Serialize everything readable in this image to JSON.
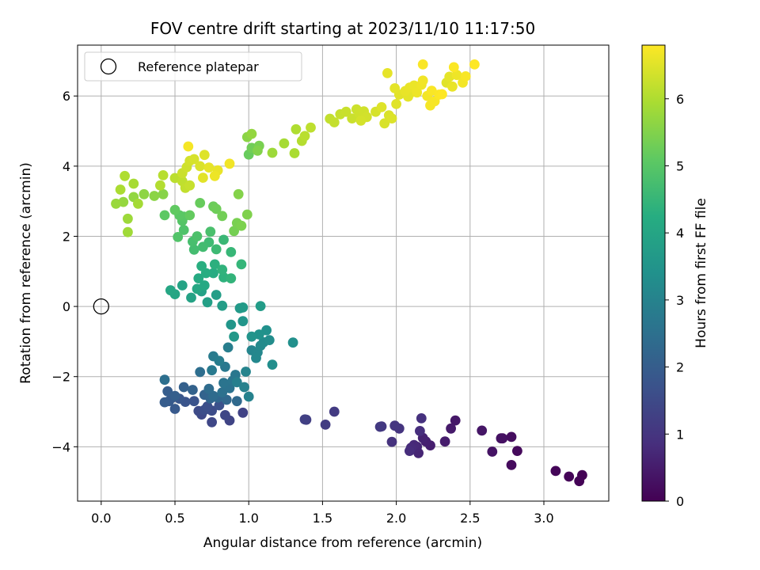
{
  "chart_data": {
    "type": "scatter",
    "title": "FOV centre drift starting at 2023/11/10 11:17:50",
    "xlabel": "Angular distance from reference (arcmin)",
    "ylabel": "Rotation from reference (arcmin)",
    "xlim": [
      -0.16,
      3.44
    ],
    "ylim": [
      -5.55,
      7.45
    ],
    "x_ticks": [
      0.0,
      0.5,
      1.0,
      1.5,
      2.0,
      2.5,
      3.0
    ],
    "x_tick_labels": [
      "0.0",
      "0.5",
      "1.0",
      "1.5",
      "2.0",
      "2.5",
      "3.0"
    ],
    "y_ticks": [
      -4,
      -2,
      0,
      2,
      4,
      6
    ],
    "y_tick_labels": [
      "−4",
      "−2",
      "0",
      "2",
      "4",
      "6"
    ],
    "grid": true,
    "legend_position": "top-left",
    "legend": [
      {
        "label": "Reference platepar",
        "marker": "open-circle",
        "x": 0,
        "y": 0
      }
    ],
    "colorbar": {
      "label": "Hours from first FF file",
      "min": 0,
      "max": 6.8,
      "ticks": [
        0,
        1,
        2,
        3,
        4,
        5,
        6
      ],
      "tick_labels": [
        "0",
        "1",
        "2",
        "3",
        "4",
        "5",
        "6"
      ],
      "colormap": "viridis"
    },
    "points": [
      [
        3.26,
        -4.81,
        0.02
      ],
      [
        3.24,
        -4.98,
        0.04
      ],
      [
        3.17,
        -4.85,
        0.06
      ],
      [
        3.08,
        -4.69,
        0.08
      ],
      [
        2.82,
        -4.12,
        0.15
      ],
      [
        2.78,
        -4.52,
        0.18
      ],
      [
        2.78,
        -3.72,
        0.22
      ],
      [
        2.72,
        -3.76,
        0.26
      ],
      [
        2.71,
        -3.76,
        0.3
      ],
      [
        2.65,
        -4.14,
        0.34
      ],
      [
        2.58,
        -3.54,
        0.38
      ],
      [
        2.4,
        -3.25,
        0.42
      ],
      [
        2.37,
        -3.48,
        0.46
      ],
      [
        2.33,
        -3.85,
        0.5
      ],
      [
        2.23,
        -3.96,
        0.54
      ],
      [
        2.2,
        -3.85,
        0.58
      ],
      [
        2.18,
        -3.75,
        0.62
      ],
      [
        2.15,
        -4.18,
        0.66
      ],
      [
        2.14,
        -4.0,
        0.7
      ],
      [
        2.12,
        -3.95,
        0.74
      ],
      [
        2.1,
        -4.03,
        0.78
      ],
      [
        2.09,
        -4.12,
        0.82
      ],
      [
        2.16,
        -3.55,
        0.86
      ],
      [
        2.17,
        -3.19,
        0.9
      ],
      [
        1.97,
        -3.86,
        0.94
      ],
      [
        2.02,
        -3.48,
        0.98
      ],
      [
        1.99,
        -3.4,
        1.02
      ],
      [
        1.9,
        -3.42,
        1.06
      ],
      [
        1.89,
        -3.43,
        1.1
      ],
      [
        1.58,
        -3.0,
        1.14
      ],
      [
        1.52,
        -3.37,
        1.18
      ],
      [
        1.39,
        -3.23,
        1.22
      ],
      [
        1.38,
        -3.22,
        1.26
      ],
      [
        0.96,
        -3.03,
        1.32
      ],
      [
        0.87,
        -3.25,
        1.36
      ],
      [
        0.84,
        -3.1,
        1.4
      ],
      [
        0.75,
        -3.3,
        1.44
      ],
      [
        0.68,
        -3.08,
        1.48
      ],
      [
        0.66,
        -2.98,
        1.52
      ],
      [
        0.75,
        -2.97,
        1.56
      ],
      [
        0.7,
        -2.95,
        1.6
      ],
      [
        0.72,
        -2.85,
        1.64
      ],
      [
        0.8,
        -2.82,
        1.68
      ],
      [
        0.63,
        -2.7,
        1.72
      ],
      [
        0.57,
        -2.72,
        1.76
      ],
      [
        0.53,
        -2.63,
        1.8
      ],
      [
        0.48,
        -2.6,
        1.84
      ],
      [
        0.5,
        -2.92,
        1.88
      ],
      [
        0.46,
        -2.7,
        1.92
      ],
      [
        0.43,
        -2.73,
        1.96
      ],
      [
        0.45,
        -2.42,
        2.0
      ],
      [
        0.5,
        -2.55,
        2.04
      ],
      [
        0.56,
        -2.3,
        2.08
      ],
      [
        0.62,
        -2.38,
        2.12
      ],
      [
        0.7,
        -2.52,
        2.16
      ],
      [
        0.74,
        -2.62,
        2.2
      ],
      [
        0.79,
        -2.6,
        2.24
      ],
      [
        0.85,
        -2.66,
        2.28
      ],
      [
        0.92,
        -2.7,
        2.32
      ],
      [
        0.76,
        -2.55,
        2.36
      ],
      [
        0.73,
        -2.35,
        2.4
      ],
      [
        0.67,
        -1.87,
        2.44
      ],
      [
        0.43,
        -2.09,
        2.48
      ],
      [
        0.82,
        -2.45,
        2.52
      ],
      [
        0.87,
        -2.33,
        2.56
      ],
      [
        0.83,
        -2.18,
        2.6
      ],
      [
        0.89,
        -2.12,
        2.64
      ],
      [
        0.91,
        -1.95,
        2.68
      ],
      [
        0.84,
        -1.72,
        2.72
      ],
      [
        0.75,
        -1.82,
        2.76
      ],
      [
        0.76,
        -1.42,
        2.8
      ],
      [
        0.8,
        -1.55,
        2.84
      ],
      [
        0.86,
        -1.17,
        2.88
      ],
      [
        0.92,
        -2.16,
        2.92
      ],
      [
        0.97,
        -2.3,
        2.96
      ],
      [
        1.0,
        -2.57,
        3.0
      ],
      [
        0.98,
        -1.86,
        3.04
      ],
      [
        1.02,
        -1.25,
        3.08
      ],
      [
        1.06,
        -1.31,
        3.12
      ],
      [
        1.05,
        -1.47,
        3.16
      ],
      [
        1.08,
        -1.12,
        3.2
      ],
      [
        1.1,
        -1.02,
        3.24
      ],
      [
        1.14,
        -0.96,
        3.28
      ],
      [
        1.16,
        -1.66,
        3.32
      ],
      [
        1.3,
        -1.03,
        3.36
      ],
      [
        1.12,
        -0.68,
        3.4
      ],
      [
        1.07,
        -0.8,
        3.44
      ],
      [
        1.02,
        -0.86,
        3.48
      ],
      [
        0.96,
        -0.42,
        3.52
      ],
      [
        0.88,
        -0.52,
        3.56
      ],
      [
        0.9,
        -0.86,
        3.6
      ],
      [
        0.94,
        -0.05,
        3.64
      ],
      [
        0.96,
        -0.03,
        3.68
      ],
      [
        1.08,
        0.01,
        3.72
      ],
      [
        0.82,
        0.02,
        3.76
      ],
      [
        0.78,
        0.33,
        3.8
      ],
      [
        0.72,
        0.12,
        3.84
      ],
      [
        0.68,
        0.43,
        3.88
      ],
      [
        0.61,
        0.25,
        3.92
      ],
      [
        0.55,
        0.6,
        3.96
      ],
      [
        0.5,
        0.35,
        4.0
      ],
      [
        0.47,
        0.46,
        4.04
      ],
      [
        0.65,
        0.5,
        4.08
      ],
      [
        0.7,
        0.6,
        4.12
      ],
      [
        0.66,
        0.8,
        4.16
      ],
      [
        0.76,
        0.95,
        4.2
      ],
      [
        0.71,
        0.95,
        4.24
      ],
      [
        0.68,
        1.15,
        4.28
      ],
      [
        0.77,
        1.2,
        4.32
      ],
      [
        0.83,
        0.83,
        4.36
      ],
      [
        0.82,
        1.05,
        4.4
      ],
      [
        0.88,
        0.8,
        4.44
      ],
      [
        0.95,
        1.2,
        4.48
      ],
      [
        0.88,
        1.55,
        4.52
      ],
      [
        0.83,
        1.9,
        4.56
      ],
      [
        0.78,
        1.63,
        4.6
      ],
      [
        0.73,
        1.83,
        4.64
      ],
      [
        0.69,
        1.7,
        4.68
      ],
      [
        0.63,
        1.62,
        4.72
      ],
      [
        0.62,
        1.85,
        4.76
      ],
      [
        0.74,
        2.13,
        4.8
      ],
      [
        0.65,
        2.0,
        4.84
      ],
      [
        0.56,
        2.18,
        4.88
      ],
      [
        0.52,
        1.98,
        4.92
      ],
      [
        0.55,
        2.44,
        4.96
      ],
      [
        0.56,
        2.56,
        5.0
      ],
      [
        0.53,
        2.6,
        5.04
      ],
      [
        0.43,
        2.6,
        5.08
      ],
      [
        0.5,
        2.75,
        5.12
      ],
      [
        0.6,
        2.6,
        5.16
      ],
      [
        0.67,
        2.95,
        5.2
      ],
      [
        0.76,
        2.85,
        5.24
      ],
      [
        0.78,
        2.78,
        5.28
      ],
      [
        0.82,
        2.58,
        5.32
      ],
      [
        0.9,
        2.15,
        5.36
      ],
      [
        0.92,
        2.38,
        5.4
      ],
      [
        0.95,
        2.3,
        5.44
      ],
      [
        0.99,
        2.62,
        5.48
      ],
      [
        0.93,
        3.2,
        5.52
      ],
      [
        0.42,
        3.2,
        5.56
      ],
      [
        0.36,
        3.15,
        5.6
      ],
      [
        0.29,
        3.2,
        5.64
      ],
      [
        0.22,
        3.12,
        5.68
      ],
      [
        0.15,
        2.98,
        5.72
      ],
      [
        0.1,
        2.93,
        5.76
      ],
      [
        0.18,
        2.5,
        5.8
      ],
      [
        0.18,
        2.12,
        5.84
      ],
      [
        0.25,
        2.93,
        5.88
      ],
      [
        0.22,
        3.5,
        5.92
      ],
      [
        0.13,
        3.33,
        5.96
      ],
      [
        0.16,
        3.72,
        6.0
      ],
      [
        0.4,
        3.45,
        6.04
      ],
      [
        0.42,
        3.74,
        6.08
      ],
      [
        0.5,
        3.66,
        6.12
      ],
      [
        0.55,
        3.57,
        6.16
      ],
      [
        0.57,
        3.38,
        6.2
      ],
      [
        0.6,
        3.45,
        6.24
      ],
      [
        0.55,
        3.8,
        6.28
      ],
      [
        0.58,
        3.97,
        6.32
      ],
      [
        0.6,
        4.15,
        6.36
      ],
      [
        0.63,
        4.2,
        6.4
      ],
      [
        0.67,
        4.0,
        6.44
      ],
      [
        0.7,
        4.32,
        6.48
      ],
      [
        0.69,
        3.67,
        6.52
      ],
      [
        0.73,
        3.96,
        6.56
      ],
      [
        0.79,
        3.88,
        6.6
      ],
      [
        0.77,
        3.72,
        6.64
      ],
      [
        0.87,
        4.07,
        6.68
      ],
      [
        0.59,
        4.56,
        6.72
      ]
    ],
    "points_late": [
      [
        1.0,
        4.33,
        5.2
      ],
      [
        1.02,
        4.52,
        5.3
      ],
      [
        1.07,
        4.58,
        5.4
      ],
      [
        1.06,
        4.44,
        5.5
      ],
      [
        0.99,
        4.83,
        5.6
      ],
      [
        1.02,
        4.92,
        5.7
      ],
      [
        1.16,
        4.38,
        5.8
      ],
      [
        1.24,
        4.65,
        5.9
      ],
      [
        1.31,
        4.37,
        5.95
      ],
      [
        1.32,
        5.05,
        6.0
      ],
      [
        1.36,
        4.72,
        6.05
      ],
      [
        1.38,
        4.86,
        6.1
      ],
      [
        1.42,
        5.1,
        6.15
      ],
      [
        1.55,
        5.35,
        6.2
      ],
      [
        1.58,
        5.25,
        6.22
      ],
      [
        1.62,
        5.48,
        6.24
      ],
      [
        1.66,
        5.55,
        6.26
      ],
      [
        1.7,
        5.36,
        6.28
      ],
      [
        1.73,
        5.62,
        6.3
      ],
      [
        1.75,
        5.5,
        6.32
      ],
      [
        1.78,
        5.56,
        6.34
      ],
      [
        1.8,
        5.4,
        6.36
      ],
      [
        1.76,
        5.3,
        6.38
      ],
      [
        1.86,
        5.55,
        6.4
      ],
      [
        1.92,
        5.22,
        6.42
      ],
      [
        1.95,
        5.45,
        6.44
      ],
      [
        1.97,
        5.36,
        6.46
      ],
      [
        1.9,
        5.68,
        6.48
      ],
      [
        2.0,
        5.77,
        6.5
      ],
      [
        2.02,
        6.04,
        6.52
      ],
      [
        1.99,
        6.22,
        6.54
      ],
      [
        1.94,
        6.65,
        6.56
      ],
      [
        2.06,
        6.14,
        6.58
      ],
      [
        2.09,
        6.24,
        6.6
      ],
      [
        2.12,
        6.3,
        6.62
      ],
      [
        2.14,
        6.1,
        6.64
      ],
      [
        2.17,
        6.32,
        6.66
      ],
      [
        2.18,
        6.44,
        6.68
      ],
      [
        2.21,
        6.0,
        6.7
      ],
      [
        2.23,
        5.73,
        6.72
      ],
      [
        2.26,
        5.85,
        6.74
      ],
      [
        2.24,
        6.15,
        6.76
      ],
      [
        2.29,
        6.04,
        6.78
      ],
      [
        2.31,
        6.05,
        6.8
      ],
      [
        2.34,
        6.38,
        6.5
      ],
      [
        2.36,
        6.55,
        6.55
      ],
      [
        2.38,
        6.27,
        6.6
      ],
      [
        2.41,
        6.6,
        6.65
      ],
      [
        2.45,
        6.38,
        6.7
      ],
      [
        2.47,
        6.56,
        6.75
      ],
      [
        2.53,
        6.9,
        6.8
      ],
      [
        2.39,
        6.82,
        6.78
      ],
      [
        2.18,
        6.9,
        6.76
      ],
      [
        2.1,
        6.1,
        6.52
      ],
      [
        2.08,
        5.98,
        6.54
      ]
    ]
  }
}
